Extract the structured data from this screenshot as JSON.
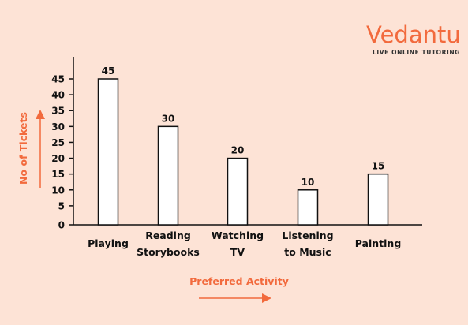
{
  "logo": {
    "name": "Vedantu",
    "tagline": "LIVE ONLINE TUTORING",
    "color": "#f26a3d"
  },
  "chart_data": {
    "type": "bar",
    "title": "",
    "xlabel": "Preferred Activity",
    "ylabel": "No of Tickets",
    "categories": [
      [
        "Playing"
      ],
      [
        "Reading",
        "Storybooks"
      ],
      [
        "Watching",
        "TV"
      ],
      [
        "Listening",
        "to Music"
      ],
      [
        "Painting"
      ]
    ],
    "values": [
      45,
      30,
      20,
      10,
      15
    ],
    "ylim": [
      0,
      45
    ],
    "yticks": [
      0,
      5,
      10,
      15,
      20,
      25,
      30,
      35,
      40,
      45
    ],
    "grid": false,
    "legend": "none",
    "bar_fill": "#ffffff",
    "bar_stroke": "#111111",
    "accent": "#f26a3d"
  }
}
